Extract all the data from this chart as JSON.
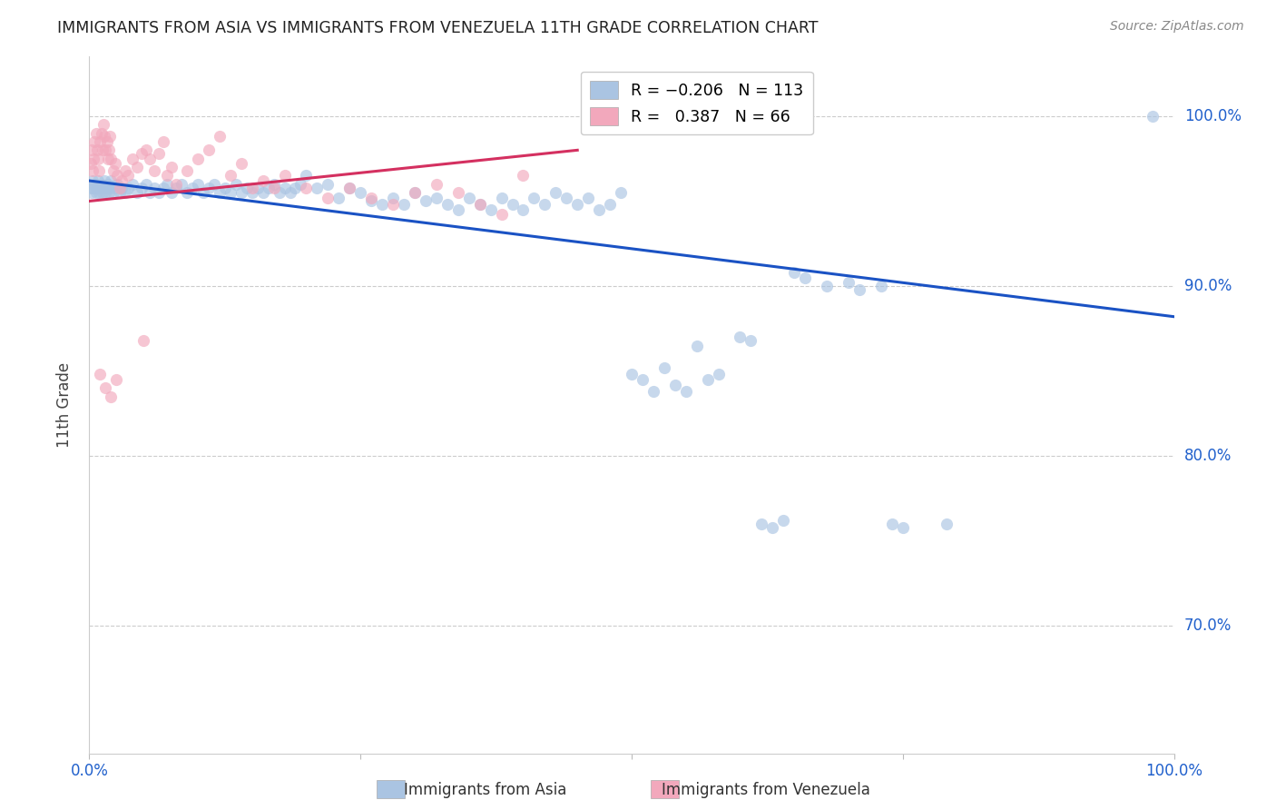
{
  "title": "IMMIGRANTS FROM ASIA VS IMMIGRANTS FROM VENEZUELA 11TH GRADE CORRELATION CHART",
  "source": "Source: ZipAtlas.com",
  "ylabel": "11th Grade",
  "xlim": [
    0.0,
    1.0
  ],
  "ylim": [
    0.625,
    1.035
  ],
  "asia_color": "#aac4e2",
  "venezuela_color": "#f2a8bc",
  "asia_line_color": "#1a52c4",
  "venezuela_line_color": "#d43060",
  "asia_trend_x": [
    0.0,
    1.0
  ],
  "asia_trend_y": [
    0.962,
    0.882
  ],
  "venezuela_trend_x": [
    0.0,
    0.45
  ],
  "venezuela_trend_y": [
    0.95,
    0.98
  ],
  "asia_scatter": [
    [
      0.001,
      0.958
    ],
    [
      0.002,
      0.955
    ],
    [
      0.003,
      0.962
    ],
    [
      0.004,
      0.958
    ],
    [
      0.005,
      0.96
    ],
    [
      0.006,
      0.955
    ],
    [
      0.007,
      0.958
    ],
    [
      0.008,
      0.962
    ],
    [
      0.009,
      0.955
    ],
    [
      0.01,
      0.958
    ],
    [
      0.011,
      0.96
    ],
    [
      0.012,
      0.955
    ],
    [
      0.013,
      0.958
    ],
    [
      0.014,
      0.962
    ],
    [
      0.015,
      0.955
    ],
    [
      0.016,
      0.958
    ],
    [
      0.017,
      0.96
    ],
    [
      0.018,
      0.955
    ],
    [
      0.019,
      0.958
    ],
    [
      0.02,
      0.962
    ],
    [
      0.022,
      0.955
    ],
    [
      0.024,
      0.958
    ],
    [
      0.026,
      0.96
    ],
    [
      0.028,
      0.955
    ],
    [
      0.03,
      0.958
    ],
    [
      0.033,
      0.955
    ],
    [
      0.036,
      0.958
    ],
    [
      0.04,
      0.96
    ],
    [
      0.044,
      0.955
    ],
    [
      0.048,
      0.958
    ],
    [
      0.052,
      0.96
    ],
    [
      0.056,
      0.955
    ],
    [
      0.06,
      0.958
    ],
    [
      0.064,
      0.955
    ],
    [
      0.068,
      0.958
    ],
    [
      0.072,
      0.96
    ],
    [
      0.076,
      0.955
    ],
    [
      0.08,
      0.958
    ],
    [
      0.085,
      0.96
    ],
    [
      0.09,
      0.955
    ],
    [
      0.095,
      0.958
    ],
    [
      0.1,
      0.96
    ],
    [
      0.105,
      0.955
    ],
    [
      0.11,
      0.958
    ],
    [
      0.115,
      0.96
    ],
    [
      0.12,
      0.955
    ],
    [
      0.125,
      0.958
    ],
    [
      0.13,
      0.955
    ],
    [
      0.135,
      0.96
    ],
    [
      0.14,
      0.955
    ],
    [
      0.145,
      0.958
    ],
    [
      0.15,
      0.955
    ],
    [
      0.155,
      0.958
    ],
    [
      0.16,
      0.955
    ],
    [
      0.165,
      0.958
    ],
    [
      0.17,
      0.96
    ],
    [
      0.175,
      0.955
    ],
    [
      0.18,
      0.958
    ],
    [
      0.185,
      0.955
    ],
    [
      0.19,
      0.958
    ],
    [
      0.195,
      0.96
    ],
    [
      0.2,
      0.965
    ],
    [
      0.21,
      0.958
    ],
    [
      0.22,
      0.96
    ],
    [
      0.23,
      0.952
    ],
    [
      0.24,
      0.958
    ],
    [
      0.25,
      0.955
    ],
    [
      0.26,
      0.95
    ],
    [
      0.27,
      0.948
    ],
    [
      0.28,
      0.952
    ],
    [
      0.29,
      0.948
    ],
    [
      0.3,
      0.955
    ],
    [
      0.31,
      0.95
    ],
    [
      0.32,
      0.952
    ],
    [
      0.33,
      0.948
    ],
    [
      0.34,
      0.945
    ],
    [
      0.35,
      0.952
    ],
    [
      0.36,
      0.948
    ],
    [
      0.37,
      0.945
    ],
    [
      0.38,
      0.952
    ],
    [
      0.39,
      0.948
    ],
    [
      0.4,
      0.945
    ],
    [
      0.41,
      0.952
    ],
    [
      0.42,
      0.948
    ],
    [
      0.43,
      0.955
    ],
    [
      0.44,
      0.952
    ],
    [
      0.45,
      0.948
    ],
    [
      0.46,
      0.952
    ],
    [
      0.47,
      0.945
    ],
    [
      0.48,
      0.948
    ],
    [
      0.49,
      0.955
    ],
    [
      0.5,
      0.848
    ],
    [
      0.51,
      0.845
    ],
    [
      0.52,
      0.838
    ],
    [
      0.53,
      0.852
    ],
    [
      0.54,
      0.842
    ],
    [
      0.55,
      0.838
    ],
    [
      0.56,
      0.865
    ],
    [
      0.57,
      0.845
    ],
    [
      0.58,
      0.848
    ],
    [
      0.6,
      0.87
    ],
    [
      0.61,
      0.868
    ],
    [
      0.62,
      0.76
    ],
    [
      0.63,
      0.758
    ],
    [
      0.64,
      0.762
    ],
    [
      0.65,
      0.908
    ],
    [
      0.66,
      0.905
    ],
    [
      0.68,
      0.9
    ],
    [
      0.7,
      0.902
    ],
    [
      0.71,
      0.898
    ],
    [
      0.73,
      0.9
    ],
    [
      0.74,
      0.76
    ],
    [
      0.75,
      0.758
    ],
    [
      0.79,
      0.76
    ],
    [
      0.98,
      1.0
    ]
  ],
  "venezuela_scatter": [
    [
      0.001,
      0.972
    ],
    [
      0.002,
      0.98
    ],
    [
      0.003,
      0.968
    ],
    [
      0.004,
      0.975
    ],
    [
      0.005,
      0.985
    ],
    [
      0.006,
      0.99
    ],
    [
      0.007,
      0.98
    ],
    [
      0.008,
      0.975
    ],
    [
      0.009,
      0.968
    ],
    [
      0.01,
      0.985
    ],
    [
      0.011,
      0.99
    ],
    [
      0.012,
      0.98
    ],
    [
      0.013,
      0.995
    ],
    [
      0.014,
      0.988
    ],
    [
      0.015,
      0.98
    ],
    [
      0.016,
      0.985
    ],
    [
      0.017,
      0.975
    ],
    [
      0.018,
      0.98
    ],
    [
      0.019,
      0.988
    ],
    [
      0.02,
      0.975
    ],
    [
      0.022,
      0.968
    ],
    [
      0.024,
      0.972
    ],
    [
      0.026,
      0.965
    ],
    [
      0.028,
      0.958
    ],
    [
      0.03,
      0.962
    ],
    [
      0.033,
      0.968
    ],
    [
      0.036,
      0.965
    ],
    [
      0.04,
      0.975
    ],
    [
      0.044,
      0.97
    ],
    [
      0.048,
      0.978
    ],
    [
      0.052,
      0.98
    ],
    [
      0.056,
      0.975
    ],
    [
      0.06,
      0.968
    ],
    [
      0.064,
      0.978
    ],
    [
      0.068,
      0.985
    ],
    [
      0.072,
      0.965
    ],
    [
      0.076,
      0.97
    ],
    [
      0.08,
      0.96
    ],
    [
      0.09,
      0.968
    ],
    [
      0.1,
      0.975
    ],
    [
      0.11,
      0.98
    ],
    [
      0.12,
      0.988
    ],
    [
      0.13,
      0.965
    ],
    [
      0.14,
      0.972
    ],
    [
      0.15,
      0.958
    ],
    [
      0.16,
      0.962
    ],
    [
      0.17,
      0.958
    ],
    [
      0.18,
      0.965
    ],
    [
      0.2,
      0.958
    ],
    [
      0.22,
      0.952
    ],
    [
      0.24,
      0.958
    ],
    [
      0.26,
      0.952
    ],
    [
      0.28,
      0.948
    ],
    [
      0.3,
      0.955
    ],
    [
      0.32,
      0.96
    ],
    [
      0.34,
      0.955
    ],
    [
      0.36,
      0.948
    ],
    [
      0.38,
      0.942
    ],
    [
      0.4,
      0.965
    ],
    [
      0.05,
      0.868
    ],
    [
      0.01,
      0.848
    ],
    [
      0.015,
      0.84
    ],
    [
      0.02,
      0.835
    ],
    [
      0.025,
      0.845
    ]
  ]
}
